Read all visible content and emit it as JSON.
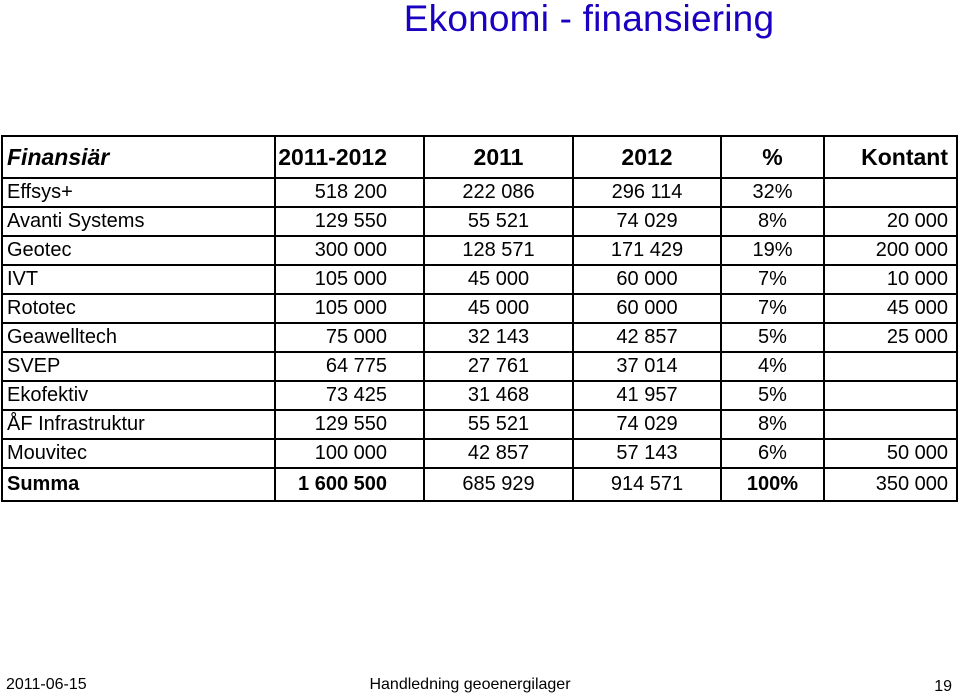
{
  "slide": {
    "title": "Ekonomi - finansiering",
    "footer_date": "2011-06-15",
    "footer_center": "Handledning geoenergilager",
    "page_number": "19"
  },
  "table": {
    "headers": [
      "Finansiär",
      "2011-2012",
      "2011",
      "2012",
      "%",
      "Kontant"
    ],
    "rows": [
      [
        "Effsys+",
        "518 200",
        "222 086",
        "296 114",
        "32%",
        ""
      ],
      [
        "Avanti Systems",
        "129 550",
        "55 521",
        "74 029",
        "8%",
        "20 000"
      ],
      [
        "Geotec",
        "300 000",
        "128 571",
        "171 429",
        "19%",
        "200 000"
      ],
      [
        "IVT",
        "105 000",
        "45 000",
        "60 000",
        "7%",
        "10 000"
      ],
      [
        "Rototec",
        "105 000",
        "45 000",
        "60 000",
        "7%",
        "45 000"
      ],
      [
        "Geawelltech",
        "75 000",
        "32 143",
        "42 857",
        "5%",
        "25 000"
      ],
      [
        "SVEP",
        "64 775",
        "27 761",
        "37 014",
        "4%",
        ""
      ],
      [
        "Ekofektiv",
        "73 425",
        "31 468",
        "41 957",
        "5%",
        ""
      ],
      [
        "ÅF Infrastruktur",
        "129 550",
        "55 521",
        "74 029",
        "8%",
        ""
      ],
      [
        "Mouvitec",
        "100 000",
        "42 857",
        "57 143",
        "6%",
        "50 000"
      ]
    ],
    "total": [
      "Summa",
      "1 600 500",
      "685 929",
      "914 571",
      "100%",
      "350 000"
    ]
  }
}
